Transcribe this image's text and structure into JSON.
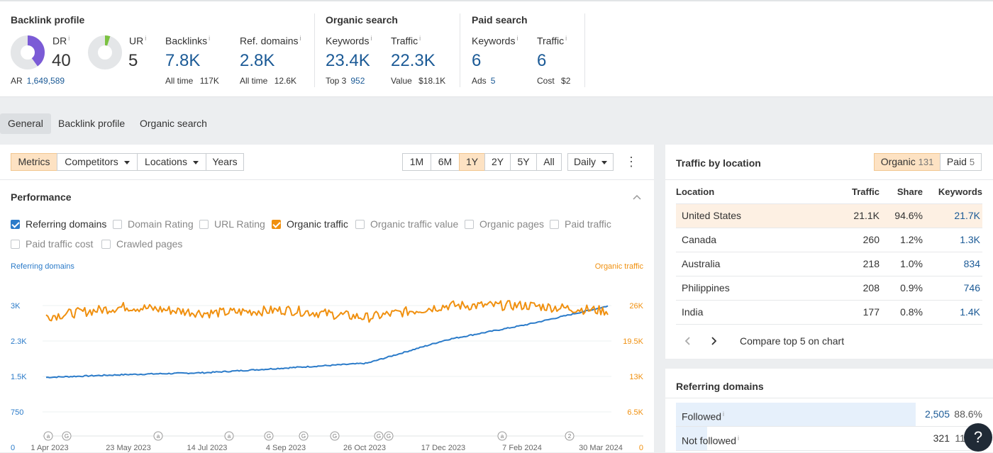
{
  "backlink": {
    "title": "Backlink profile",
    "dr_label": "DR",
    "dr_value": "40",
    "ur_label": "UR",
    "ur_value": "5",
    "ar_label": "AR",
    "ar_value": "1,649,589",
    "backlinks_label": "Backlinks",
    "backlinks_value": "7.8K",
    "backlinks_sub_label": "All time",
    "backlinks_sub_value": "117K",
    "refdomains_label": "Ref. domains",
    "refdomains_value": "2.8K",
    "refdomains_sub_label": "All time",
    "refdomains_sub_value": "12.6K",
    "dr_fraction": 0.4,
    "ur_fraction": 0.05
  },
  "organic": {
    "title": "Organic search",
    "keywords_label": "Keywords",
    "keywords_value": "23.4K",
    "keywords_sub_label": "Top 3",
    "keywords_sub_value": "952",
    "traffic_label": "Traffic",
    "traffic_value": "22.3K",
    "traffic_sub_label": "Value",
    "traffic_sub_value": "$18.1K"
  },
  "paid": {
    "title": "Paid search",
    "keywords_label": "Keywords",
    "keywords_value": "6",
    "keywords_sub_label": "Ads",
    "keywords_sub_value": "5",
    "traffic_label": "Traffic",
    "traffic_value": "6",
    "traffic_sub_label": "Cost",
    "traffic_sub_value": "$2"
  },
  "info_mark": "i",
  "tabs": [
    "General",
    "Backlink profile",
    "Organic search"
  ],
  "toolbar": {
    "metrics": "Metrics",
    "competitors": "Competitors",
    "locations": "Locations",
    "years": "Years",
    "ranges": [
      "1M",
      "6M",
      "1Y",
      "2Y",
      "5Y",
      "All"
    ],
    "interval": "Daily",
    "more": "⋮"
  },
  "performance": {
    "title": "Performance",
    "checkboxes": [
      {
        "label": "Referring domains",
        "checked": true,
        "color": "#2b7bc9"
      },
      {
        "label": "Domain Rating",
        "checked": false
      },
      {
        "label": "URL Rating",
        "checked": false
      },
      {
        "label": "Organic traffic",
        "checked": true,
        "color": "#f0900f"
      },
      {
        "label": "Organic traffic value",
        "checked": false
      },
      {
        "label": "Organic pages",
        "checked": false
      },
      {
        "label": "Paid traffic",
        "checked": false
      },
      {
        "label": "Paid traffic cost",
        "checked": false
      },
      {
        "label": "Crawled pages",
        "checked": false
      }
    ]
  },
  "chart_data": {
    "type": "line",
    "left_axis_label": "Referring domains",
    "right_axis_label": "Organic traffic",
    "left_ticks": [
      "3K",
      "2.3K",
      "1.5K",
      "750",
      "0"
    ],
    "right_ticks": [
      "26K",
      "19.5K",
      "13K",
      "6.5K",
      "0"
    ],
    "x_labels": [
      "1 Apr 2023",
      "23 May 2023",
      "14 Jul 2023",
      "4 Sep 2023",
      "26 Oct 2023",
      "17 Dec 2023",
      "7 Feb 2024",
      "30 Mar 2024"
    ],
    "ylim_left": [
      0,
      3000
    ],
    "ylim_right": [
      0,
      26000
    ],
    "annotation_markers": [
      "a",
      "G",
      "a",
      "a",
      "G",
      "G",
      "G",
      "G",
      "G",
      "a",
      "2"
    ],
    "series": [
      {
        "name": "Referring domains",
        "color": "#2b7bc9",
        "axis": "left",
        "x": [
          "1 Apr 2023",
          "23 May 2023",
          "14 Jul 2023",
          "4 Sep 2023",
          "26 Oct 2023",
          "17 Dec 2023",
          "7 Feb 2024",
          "30 Mar 2024"
        ],
        "values": [
          1480,
          1540,
          1580,
          1680,
          1780,
          2280,
          2600,
          2990
        ]
      },
      {
        "name": "Organic traffic",
        "color": "#f0900f",
        "axis": "right",
        "x": [
          "1 Apr 2023",
          "23 May 2023",
          "14 Jul 2023",
          "4 Sep 2023",
          "26 Oct 2023",
          "17 Dec 2023",
          "7 Feb 2024",
          "30 Mar 2024"
        ],
        "values": [
          24000,
          25800,
          24600,
          25200,
          23800,
          26000,
          26000,
          25000
        ]
      }
    ]
  },
  "location": {
    "title": "Traffic by location",
    "organic_label": "Organic",
    "organic_count": "131",
    "paid_label": "Paid",
    "paid_count": "5",
    "headers": {
      "location": "Location",
      "traffic": "Traffic",
      "share": "Share",
      "keywords": "Keywords"
    },
    "rows": [
      {
        "location": "United States",
        "traffic": "21.1K",
        "share": "94.6%",
        "keywords": "21.7K"
      },
      {
        "location": "Canada",
        "traffic": "260",
        "share": "1.2%",
        "keywords": "1.3K"
      },
      {
        "location": "Australia",
        "traffic": "218",
        "share": "1.0%",
        "keywords": "834"
      },
      {
        "location": "Philippines",
        "traffic": "208",
        "share": "0.9%",
        "keywords": "746"
      },
      {
        "location": "India",
        "traffic": "177",
        "share": "0.8%",
        "keywords": "1.4K"
      }
    ],
    "compare_label": "Compare top 5 on chart"
  },
  "refdomains": {
    "title": "Referring domains",
    "rows": [
      {
        "label": "Followed",
        "value": "2,505",
        "pct": "88.6%",
        "fraction": 0.886
      },
      {
        "label": "Not followed",
        "value": "321",
        "pct": "11.4%",
        "fraction": 0.114
      }
    ]
  },
  "help": "?"
}
